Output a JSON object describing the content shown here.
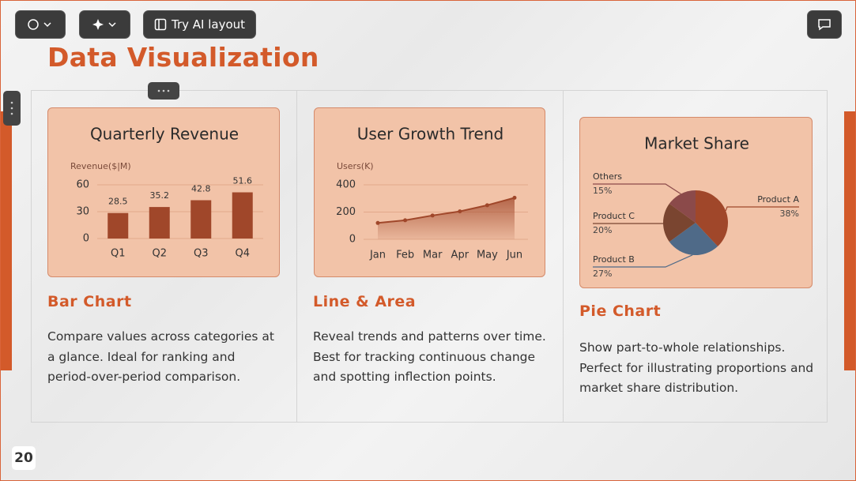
{
  "toolbar": {
    "ai_button": "Try AI layout"
  },
  "title": "Data Visualization",
  "page_number": 20,
  "cards": [
    {
      "chart": {
        "type": "bar",
        "title": "Quarterly Revenue",
        "y_label": "Revenue($|M)",
        "categories": [
          "Q1",
          "Q2",
          "Q3",
          "Q4"
        ],
        "values": [
          28.5,
          35.2,
          42.8,
          51.6
        ],
        "color": "#a0472a",
        "ylim": [
          0,
          60
        ],
        "yticks": [
          0,
          30,
          60
        ],
        "grid": true
      },
      "heading": "Bar Chart",
      "description": "Compare values across categories at a glance. Ideal for ranking and period-over-period comparison."
    },
    {
      "chart": {
        "type": "line",
        "title": "User Growth Trend",
        "y_label": "Users(K)",
        "categories": [
          "Jan",
          "Feb",
          "Mar",
          "Apr",
          "May",
          "Jun"
        ],
        "values": [
          120,
          140,
          175,
          205,
          250,
          305
        ],
        "color": "#a0472a",
        "ylim": [
          0,
          400
        ],
        "yticks": [
          0,
          200,
          400
        ],
        "grid": true
      },
      "heading": "Line & Area",
      "description": "Reveal trends and patterns over time. Best for tracking continuous change and spotting inflection points."
    },
    {
      "chart": {
        "type": "pie",
        "title": "Market Share",
        "categories": [
          "Product A",
          "Product B",
          "Product C",
          "Others"
        ],
        "values": [
          38,
          27,
          20,
          15
        ],
        "value_labels": [
          "38%",
          "27%",
          "20%",
          "15%"
        ],
        "colors": [
          "#a0472a",
          "#4f6a88",
          "#7a4530",
          "#8b4a4a"
        ]
      },
      "heading": "Pie Chart",
      "description": "Show part-to-whole relationships. Perfect for illustrating proportions and market share distribution."
    }
  ]
}
